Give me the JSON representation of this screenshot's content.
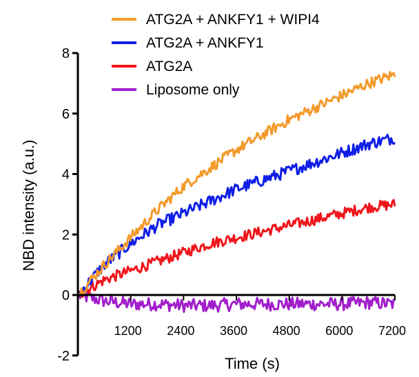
{
  "chart_data": {
    "type": "line",
    "title": "",
    "xlabel": "Time (s)",
    "ylabel": "NBD intensity (a.u.)",
    "xlim": [
      0,
      7200
    ],
    "ylim": [
      -2,
      8
    ],
    "xticks": [
      1200,
      2400,
      3600,
      4800,
      6000,
      7200
    ],
    "yticks": [
      -2,
      0,
      2,
      4,
      6,
      8
    ],
    "legend_position": "top-right",
    "grid": false,
    "series": [
      {
        "name": "ATG2A + ANKFY1 + WIPI4",
        "color": "#f39a2b",
        "x": [
          0,
          600,
          1200,
          1800,
          2400,
          3000,
          3600,
          4200,
          4800,
          5400,
          6000,
          6600,
          7200
        ],
        "y": [
          0.0,
          1.0,
          1.9,
          2.8,
          3.6,
          4.2,
          4.8,
          5.3,
          5.8,
          6.2,
          6.6,
          7.0,
          7.3
        ]
      },
      {
        "name": "ATG2A + ANKFY1",
        "color": "#0f1ee6",
        "x": [
          0,
          600,
          1200,
          1800,
          2400,
          3000,
          3600,
          4200,
          4800,
          5400,
          6000,
          6600,
          7200
        ],
        "y": [
          0.0,
          1.0,
          1.7,
          2.3,
          2.7,
          3.1,
          3.5,
          3.8,
          4.1,
          4.4,
          4.7,
          5.0,
          5.2
        ]
      },
      {
        "name": "ATG2A",
        "color": "#f0151c",
        "x": [
          0,
          600,
          1200,
          1800,
          2400,
          3000,
          3600,
          4200,
          4800,
          5400,
          6000,
          6600,
          7200
        ],
        "y": [
          0.0,
          0.5,
          0.8,
          1.1,
          1.4,
          1.7,
          1.9,
          2.1,
          2.3,
          2.5,
          2.7,
          2.9,
          3.0
        ]
      },
      {
        "name": "Liposome only",
        "color": "#a21fcc",
        "x": [
          0,
          600,
          1200,
          1800,
          2400,
          3000,
          3600,
          4200,
          4800,
          5400,
          6000,
          6600,
          7200
        ],
        "y": [
          0.0,
          -0.2,
          -0.3,
          -0.3,
          -0.35,
          -0.35,
          -0.3,
          -0.3,
          -0.3,
          -0.3,
          -0.3,
          -0.25,
          -0.3
        ]
      }
    ]
  }
}
